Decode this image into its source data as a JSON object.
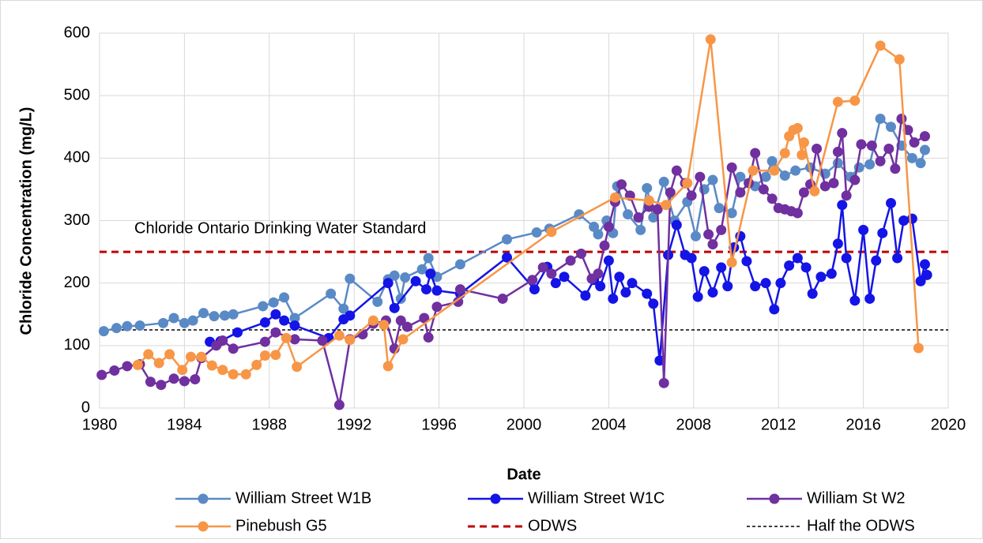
{
  "chart_data": {
    "type": "line",
    "x_label": "Date",
    "y_label": "Chloride Concentration (mg/L)",
    "annotation": "Chloride Ontario Drinking Water Standard",
    "xlim": [
      1980,
      2020
    ],
    "xticks": [
      1980,
      1984,
      1988,
      1992,
      1996,
      2000,
      2004,
      2008,
      2012,
      2016,
      2020
    ],
    "ylim": [
      0,
      600
    ],
    "yticks": [
      0,
      100,
      200,
      300,
      400,
      500,
      600
    ],
    "grid": true,
    "legend": "bottom",
    "series": [
      {
        "name": "William Street W1B",
        "color": "#5a8ac6",
        "marker": true,
        "line_style": "solid",
        "x": [
          1980.2,
          1980.8,
          1981.3,
          1981.9,
          1983,
          1983.5,
          1984,
          1984.4,
          1984.9,
          1985.4,
          1985.9,
          1986.3,
          1987.7,
          1988.2,
          1988.7,
          1989.2,
          1990.9,
          1991.5,
          1991.8,
          1993.1,
          1993.6,
          1993.9,
          1994.2,
          1994.4,
          1995.2,
          1995.5,
          1995.9,
          1997,
          1999.2,
          2000.6,
          2001.2,
          2002.6,
          2003.3,
          2003.5,
          2003.9,
          2004.2,
          2004.4,
          2004.9,
          2005.5,
          2005.8,
          2006.1,
          2006.6,
          2007.1,
          2007.7,
          2008.1,
          2008.5,
          2008.9,
          2009.2,
          2009.8,
          2010.2,
          2010.9,
          2011.4,
          2011.7,
          2012.3,
          2012.8,
          2013.5,
          2014.2,
          2014.8,
          2015.4,
          2015.8,
          2016.3,
          2016.8,
          2017.3,
          2017.8,
          2018.3,
          2018.7,
          2018.9
        ],
        "values": [
          123,
          128,
          131,
          132,
          136,
          144,
          136,
          140,
          152,
          147,
          148,
          150,
          163,
          169,
          177,
          144,
          183,
          159,
          207,
          170,
          206,
          212,
          175,
          209,
          222,
          240,
          210,
          230,
          270,
          281,
          287,
          310,
          290,
          278,
          300,
          280,
          355,
          310,
          285,
          352,
          305,
          362,
          300,
          330,
          275,
          350,
          365,
          320,
          312,
          370,
          355,
          370,
          395,
          372,
          380,
          385,
          375,
          392,
          370,
          385,
          390,
          463,
          450,
          420,
          400,
          392,
          413
        ]
      },
      {
        "name": "William Street W1C",
        "color": "#1414e6",
        "marker": true,
        "line_style": "solid",
        "x": [
          1985.2,
          1985.7,
          1986.5,
          1987.8,
          1988.3,
          1988.7,
          1989.2,
          1990.8,
          1991.5,
          1991.8,
          1993.6,
          1993.9,
          1994.9,
          1995.4,
          1995.6,
          1995.9,
          1997,
          1999.2,
          2000.5,
          2001.1,
          2001.5,
          2001.9,
          2002.9,
          2003.3,
          2003.6,
          2004,
          2004.2,
          2004.5,
          2004.8,
          2005.1,
          2005.8,
          2006.1,
          2006.4,
          2006.8,
          2007.2,
          2007.6,
          2007.9,
          2008.2,
          2008.5,
          2008.9,
          2009.3,
          2009.6,
          2009.9,
          2010.2,
          2010.5,
          2010.9,
          2011.4,
          2011.8,
          2012.1,
          2012.5,
          2012.9,
          2013.3,
          2013.6,
          2014,
          2014.5,
          2014.8,
          2015,
          2015.2,
          2015.6,
          2016,
          2016.3,
          2016.6,
          2016.9,
          2017.3,
          2017.6,
          2017.9,
          2018.3,
          2018.7,
          2018.9,
          2019
        ],
        "values": [
          106,
          107,
          121,
          137,
          150,
          140,
          132,
          112,
          142,
          148,
          200,
          160,
          203,
          190,
          215,
          188,
          183,
          241,
          190,
          226,
          200,
          210,
          180,
          205,
          195,
          236,
          175,
          210,
          185,
          200,
          183,
          167,
          76,
          245,
          293,
          245,
          240,
          178,
          219,
          185,
          225,
          195,
          257,
          275,
          235,
          195,
          200,
          158,
          200,
          228,
          240,
          225,
          183,
          210,
          215,
          263,
          325,
          240,
          172,
          285,
          175,
          236,
          280,
          328,
          240,
          300,
          303,
          203,
          230,
          213
        ]
      },
      {
        "name": "William St W2",
        "color": "#7030a0",
        "marker": true,
        "line_style": "solid",
        "x": [
          1980.1,
          1980.7,
          1981.3,
          1981.9,
          1982.4,
          1982.9,
          1983.5,
          1984,
          1984.5,
          1984.8,
          1985.5,
          1985.8,
          1986.3,
          1987.8,
          1988.3,
          1989.2,
          1990.5,
          1991.3,
          1991.8,
          1992.4,
          1992.9,
          1993.5,
          1993.9,
          1994.2,
          1994.5,
          1995.3,
          1995.5,
          1995.9,
          1996.9,
          1997,
          1999,
          2000.4,
          2000.9,
          2001.3,
          2002.2,
          2002.7,
          2003.2,
          2003.5,
          2003.8,
          2004,
          2004.3,
          2004.6,
          2005,
          2005.4,
          2005.9,
          2006.3,
          2006.6,
          2006.9,
          2007.2,
          2007.6,
          2007.9,
          2008.3,
          2008.7,
          2008.9,
          2009.3,
          2009.8,
          2010.2,
          2010.6,
          2010.9,
          2011.3,
          2011.7,
          2012,
          2012.3,
          2012.6,
          2012.9,
          2013.2,
          2013.5,
          2013.8,
          2014.2,
          2014.6,
          2014.8,
          2015,
          2015.2,
          2015.6,
          2015.9,
          2016.4,
          2016.8,
          2017.2,
          2017.5,
          2017.8,
          2018.1,
          2018.4,
          2018.9
        ],
        "values": [
          53,
          60,
          67,
          70,
          42,
          37,
          47,
          43,
          46,
          80,
          100,
          108,
          95,
          106,
          121,
          110,
          108,
          5,
          110,
          118,
          135,
          140,
          95,
          140,
          130,
          144,
          113,
          162,
          170,
          190,
          175,
          205,
          225,
          215,
          236,
          247,
          207,
          215,
          260,
          290,
          330,
          358,
          340,
          305,
          322,
          318,
          40,
          345,
          380,
          360,
          340,
          370,
          278,
          262,
          285,
          385,
          345,
          360,
          408,
          350,
          335,
          320,
          318,
          315,
          312,
          345,
          358,
          415,
          355,
          360,
          410,
          440,
          340,
          365,
          422,
          420,
          395,
          415,
          383,
          463,
          445,
          425,
          435
        ]
      },
      {
        "name": "Pinebush G5",
        "color": "#f79646",
        "marker": true,
        "line_style": "solid",
        "x": [
          1981.8,
          1982.3,
          1982.8,
          1983.3,
          1983.9,
          1984.3,
          1984.8,
          1985.3,
          1985.8,
          1986.3,
          1986.9,
          1987.4,
          1987.8,
          1988.3,
          1988.8,
          1989.3,
          1991.3,
          1991.8,
          1992.9,
          1993.4,
          1993.6,
          1994.3,
          2001.3,
          2004.3,
          2005.9,
          2006.7,
          2007.7,
          2008.8,
          2009.8,
          2010.8,
          2011.8,
          2012.3,
          2012.5,
          2012.7,
          2012.9,
          2013.1,
          2013.2,
          2013.7,
          2014.8,
          2015.6,
          2016.8,
          2017.7,
          2018.6
        ],
        "values": [
          69,
          86,
          72,
          86,
          61,
          82,
          82,
          68,
          61,
          54,
          54,
          69,
          84,
          85,
          112,
          66,
          116,
          109,
          140,
          133,
          67,
          110,
          282,
          337,
          332,
          325,
          360,
          590,
          233,
          380,
          380,
          408,
          435,
          445,
          448,
          405,
          425,
          347,
          490,
          492,
          580,
          558,
          96
        ]
      },
      {
        "name": "ODWS",
        "color": "#c00000",
        "marker": false,
        "line_style": "dash",
        "x": [
          1980,
          2020
        ],
        "values": [
          250,
          250
        ]
      },
      {
        "name": "Half the ODWS",
        "color": "#000000",
        "marker": false,
        "line_style": "short-dash",
        "x": [
          1980,
          2020
        ],
        "values": [
          125,
          125
        ]
      }
    ]
  }
}
